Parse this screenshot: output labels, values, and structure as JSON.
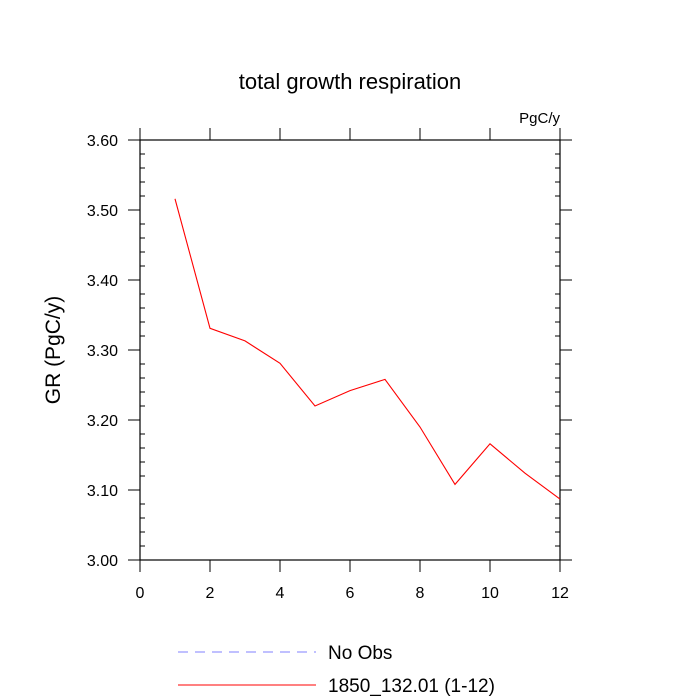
{
  "chart_data": {
    "type": "line",
    "title": "total growth respiration",
    "units_label": "PgC/y",
    "ylabel": "GR  (PgC/y)",
    "xlabel": "",
    "xlim": [
      0,
      12
    ],
    "ylim": [
      3.0,
      3.6
    ],
    "x_ticks": [
      "0",
      "2",
      "4",
      "6",
      "8",
      "10",
      "12"
    ],
    "y_ticks": [
      "3.00",
      "3.10",
      "3.20",
      "3.30",
      "3.40",
      "3.50",
      "3.60"
    ],
    "grid": false,
    "legend_position": "bottom",
    "series": [
      {
        "name": "No Obs",
        "color": "#8080ff",
        "style": "dashed",
        "x": [],
        "y": []
      },
      {
        "name": "1850_132.01 (1-12)",
        "color": "#ff0000",
        "style": "solid",
        "x": [
          1,
          2,
          3,
          4,
          5,
          6,
          7,
          8,
          9,
          10,
          11,
          12
        ],
        "y": [
          3.516,
          3.331,
          3.313,
          3.281,
          3.22,
          3.242,
          3.258,
          3.19,
          3.108,
          3.166,
          3.124,
          3.087
        ]
      }
    ]
  }
}
